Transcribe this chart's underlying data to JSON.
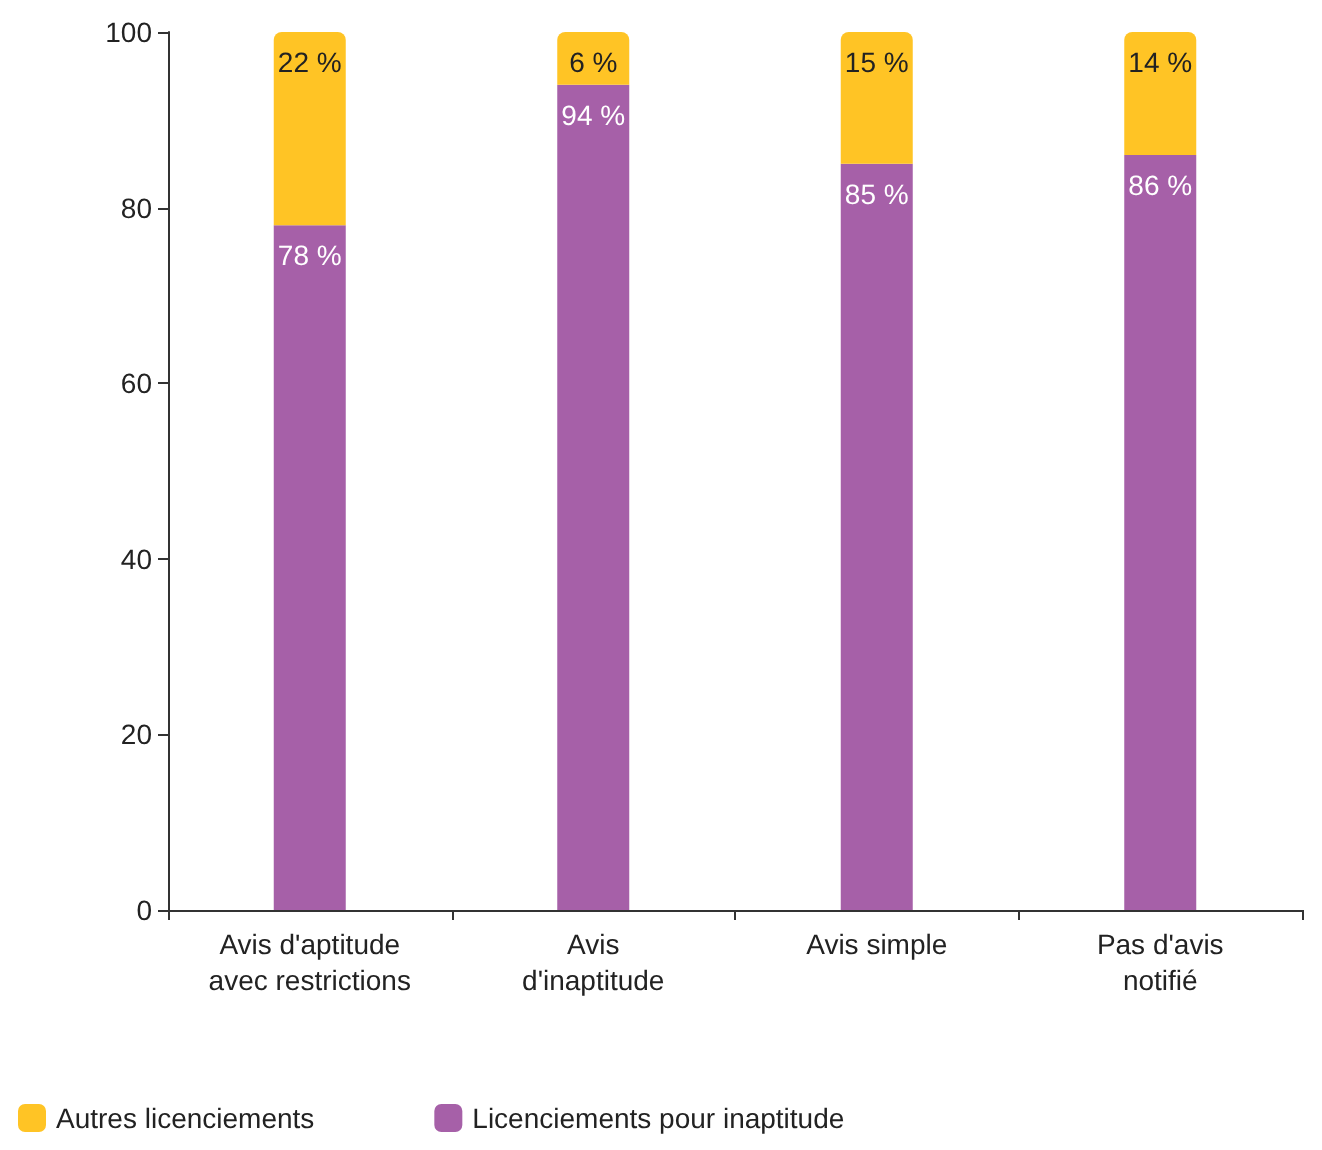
{
  "chart_data": {
    "type": "bar",
    "stacked": true,
    "categories": [
      "Avis d'aptitude\navec restrictions",
      "Avis\nd'inaptitude",
      "Avis simple",
      "Pas d'avis\nnotifié"
    ],
    "series": [
      {
        "name": "Licenciements pour inaptitude",
        "color": "#a660a8",
        "values": [
          78,
          94,
          85,
          86
        ],
        "value_labels": [
          "78 %",
          "94 %",
          "85 %",
          "86 %"
        ]
      },
      {
        "name": "Autres licenciements",
        "color": "#ffc425",
        "values": [
          22,
          6,
          15,
          14
        ],
        "value_labels": [
          "22 %",
          "6 %",
          "15 %",
          "14 %"
        ]
      }
    ],
    "ylim": [
      0,
      100
    ],
    "yticks": [
      0,
      20,
      40,
      60,
      80,
      100
    ],
    "grid": false,
    "legend": "bottom left"
  }
}
